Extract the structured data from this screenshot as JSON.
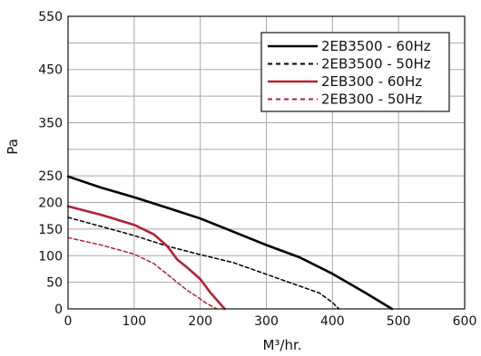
{
  "chart_data": {
    "type": "line",
    "xlabel": "M³/hr.",
    "ylabel": "Pa",
    "xlim": [
      0,
      600
    ],
    "ylim": [
      0,
      550
    ],
    "x_ticks": [
      "0",
      "100",
      "200",
      "300",
      "400",
      "500",
      "600"
    ],
    "y_ticks": [
      "0",
      "50",
      "100",
      "150",
      "200",
      "250",
      "350",
      "450",
      "550"
    ],
    "y_grid": [
      0,
      50,
      100,
      150,
      200,
      250,
      300,
      350,
      400,
      450,
      500,
      550
    ],
    "grid": true,
    "legend_position": "top-right",
    "series": [
      {
        "name": "2EB3500 - 60Hz",
        "color": "#000000",
        "dash": "solid",
        "x": [
          0,
          50,
          100,
          150,
          200,
          250,
          300,
          350,
          400,
          450,
          490
        ],
        "y": [
          249,
          228,
          210,
          190,
          170,
          145,
          120,
          97,
          66,
          30,
          0
        ]
      },
      {
        "name": "2EB3500 - 50Hz",
        "color": "#000000",
        "dash": "dashed",
        "x": [
          0,
          50,
          100,
          150,
          200,
          250,
          300,
          350,
          380,
          400,
          410
        ],
        "y": [
          172,
          155,
          138,
          118,
          102,
          87,
          65,
          43,
          30,
          12,
          0
        ]
      },
      {
        "name": "2EB300 - 60Hz",
        "color": "#b22234",
        "dash": "solid",
        "x": [
          0,
          50,
          100,
          130,
          150,
          165,
          180,
          200,
          215,
          237
        ],
        "y": [
          193,
          177,
          158,
          140,
          118,
          93,
          78,
          56,
          31,
          0
        ]
      },
      {
        "name": "2EB300 - 50Hz",
        "color": "#b22234",
        "dash": "dashed",
        "x": [
          0,
          50,
          100,
          130,
          150,
          165,
          180,
          195,
          210,
          225
        ],
        "y": [
          134,
          120,
          103,
          85,
          65,
          50,
          35,
          23,
          10,
          0
        ]
      }
    ]
  }
}
